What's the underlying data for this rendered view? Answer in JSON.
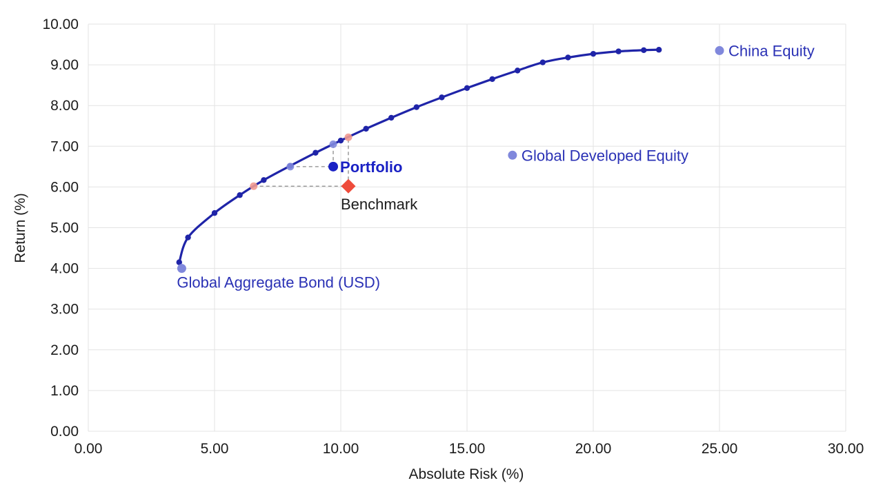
{
  "chart_data": {
    "type": "scatter",
    "title": "",
    "xlabel": "Absolute Risk (%)",
    "ylabel": "Return (%)",
    "xlim": [
      0,
      30
    ],
    "ylim": [
      0,
      10
    ],
    "x_ticks": [
      "0.00",
      "5.00",
      "10.00",
      "15.00",
      "20.00",
      "25.00",
      "30.00"
    ],
    "y_ticks": [
      "0.00",
      "1.00",
      "2.00",
      "3.00",
      "4.00",
      "5.00",
      "6.00",
      "7.00",
      "8.00",
      "9.00",
      "10.00"
    ],
    "grid": true,
    "legend": "none",
    "colors": {
      "frontier": "#1f24a8",
      "asset_points": "#8088dc",
      "asset_labels": "#2a31b5",
      "portfolio": "#1a21c4",
      "benchmark": "#ee4b3a",
      "benchmark_label": "#1b1b1b",
      "guide_lines": "#8a8a8a",
      "grid": "#e3e3e3"
    },
    "series": [
      {
        "type": "line",
        "points": [
          [
            3.6,
            4.15
          ],
          [
            3.95,
            4.76
          ],
          [
            5.0,
            5.36
          ],
          [
            6.0,
            5.8
          ],
          [
            6.95,
            6.17
          ],
          [
            8.0,
            6.52
          ],
          [
            9.0,
            6.84
          ],
          [
            10.0,
            7.14
          ],
          [
            11.0,
            7.43
          ],
          [
            12.0,
            7.7
          ],
          [
            13.0,
            7.96
          ],
          [
            14.0,
            8.2
          ],
          [
            15.0,
            8.43
          ],
          [
            16.0,
            8.65
          ],
          [
            17.0,
            8.86
          ],
          [
            18.0,
            9.06
          ],
          [
            19.0,
            9.18
          ],
          [
            20.0,
            9.27
          ],
          [
            21.0,
            9.33
          ],
          [
            22.0,
            9.36
          ],
          [
            22.6,
            9.37
          ]
        ]
      }
    ],
    "assets": [
      {
        "label": "Global Aggregate Bond (USD)",
        "x": 3.7,
        "y": 4.0
      },
      {
        "label": "Global Developed Equity",
        "x": 16.8,
        "y": 6.78
      },
      {
        "label": "China Equity",
        "x": 25.0,
        "y": 9.35
      }
    ],
    "portfolio": {
      "label": "Portfolio",
      "x": 9.7,
      "y": 6.5
    },
    "benchmark": {
      "label": "Benchmark",
      "x": 10.3,
      "y": 6.02
    },
    "projection_markers": [
      {
        "x": 8.0,
        "y": 6.5,
        "color": "#8088dc"
      },
      {
        "x": 9.7,
        "y": 7.05,
        "color": "#8088dc"
      },
      {
        "x": 6.55,
        "y": 6.02,
        "color": "#f19a90"
      },
      {
        "x": 10.3,
        "y": 7.22,
        "color": "#f19a90"
      }
    ]
  }
}
